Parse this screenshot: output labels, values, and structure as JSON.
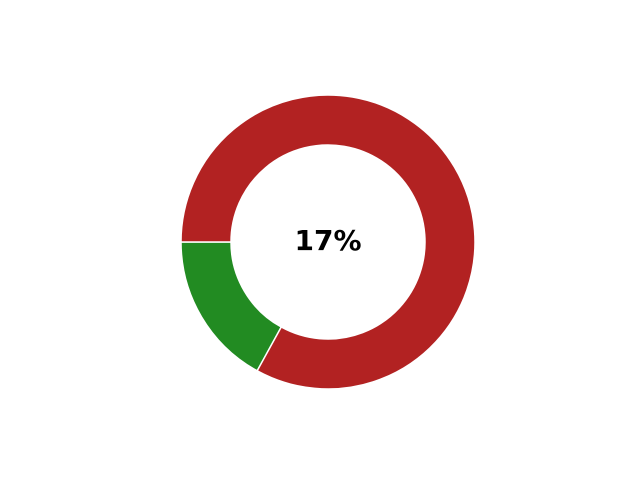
{
  "chart_data": {
    "type": "pie",
    "variant": "donut",
    "center_label": "17%",
    "slices": [
      {
        "value": 17,
        "color": "#228B22"
      },
      {
        "value": 83,
        "color": "#B22222"
      }
    ],
    "legend": "none"
  }
}
